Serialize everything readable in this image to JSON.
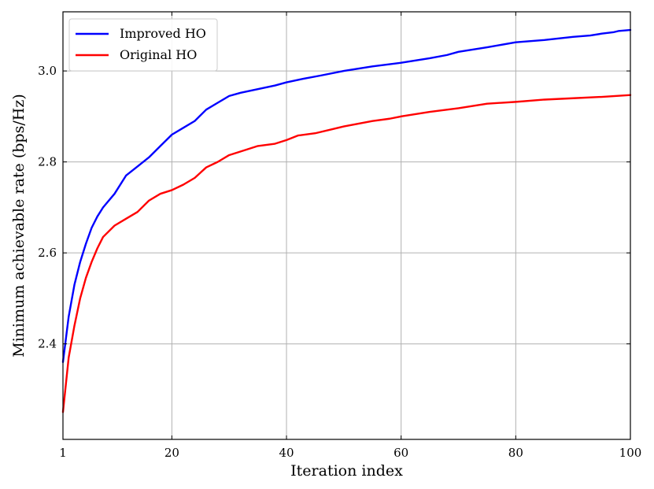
{
  "chart_data": {
    "type": "line",
    "xlabel": "Iteration index",
    "ylabel": "Minimum achievable rate (bps/Hz)",
    "xlim": [
      1,
      100
    ],
    "ylim": [
      2.19,
      3.13
    ],
    "xticks": [
      1,
      20,
      40,
      60,
      80,
      100
    ],
    "yticks": [
      2.4,
      2.6,
      2.8,
      3.0
    ],
    "xtick_labels": [
      "1",
      "20",
      "40",
      "60",
      "80",
      "100"
    ],
    "ytick_labels": [
      "2.4",
      "2.6",
      "2.8",
      "3.0"
    ],
    "grid": true,
    "legend_position": "top-left",
    "series": [
      {
        "name": "Improved HO",
        "color": "#0000ff",
        "x": [
          1,
          2,
          3,
          4,
          5,
          6,
          7,
          8,
          10,
          12,
          14,
          16,
          18,
          20,
          22,
          24,
          26,
          28,
          30,
          32,
          35,
          38,
          40,
          43,
          46,
          50,
          55,
          60,
          65,
          68,
          70,
          75,
          80,
          85,
          90,
          93,
          95,
          97,
          98,
          100
        ],
        "y": [
          2.36,
          2.46,
          2.53,
          2.58,
          2.62,
          2.655,
          2.68,
          2.7,
          2.73,
          2.77,
          2.79,
          2.81,
          2.835,
          2.86,
          2.875,
          2.89,
          2.915,
          2.93,
          2.945,
          2.952,
          2.96,
          2.968,
          2.975,
          2.983,
          2.99,
          3.0,
          3.01,
          3.018,
          3.028,
          3.035,
          3.042,
          3.052,
          3.063,
          3.068,
          3.075,
          3.078,
          3.082,
          3.085,
          3.088,
          3.09
        ]
      },
      {
        "name": "Original HO",
        "color": "#ff0000",
        "x": [
          1,
          2,
          3,
          4,
          5,
          6,
          7,
          8,
          10,
          12,
          14,
          16,
          18,
          20,
          22,
          24,
          26,
          28,
          30,
          32,
          35,
          38,
          40,
          42,
          45,
          48,
          50,
          55,
          58,
          60,
          65,
          70,
          75,
          80,
          85,
          90,
          95,
          100
        ],
        "y": [
          2.25,
          2.37,
          2.44,
          2.5,
          2.545,
          2.58,
          2.61,
          2.635,
          2.66,
          2.675,
          2.69,
          2.715,
          2.73,
          2.738,
          2.75,
          2.765,
          2.788,
          2.8,
          2.815,
          2.823,
          2.835,
          2.84,
          2.848,
          2.858,
          2.863,
          2.872,
          2.878,
          2.89,
          2.895,
          2.9,
          2.91,
          2.918,
          2.928,
          2.932,
          2.937,
          2.94,
          2.943,
          2.947
        ]
      }
    ]
  }
}
